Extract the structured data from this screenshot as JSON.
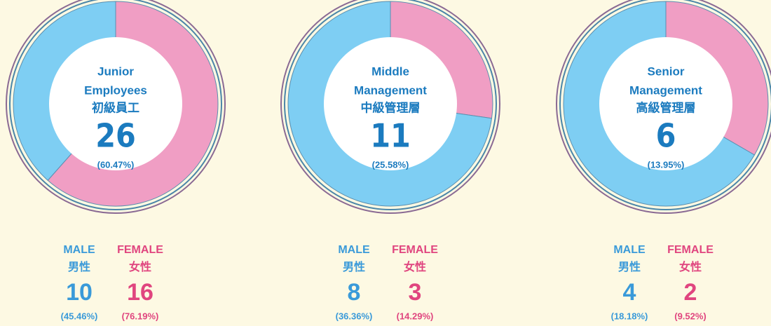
{
  "chart_data": [
    {
      "type": "donut",
      "title": "Junior Employees",
      "subtitle": "初級員工",
      "total": 26,
      "share": 60.47,
      "share_label": "(60.47%)",
      "categories": [
        "MALE",
        "FEMALE"
      ],
      "categories_zh": [
        "男性",
        "女性"
      ],
      "values": [
        10,
        16
      ],
      "percentages": [
        45.46,
        76.19
      ],
      "percentage_labels": [
        "(45.46%)",
        "(76.19%)"
      ],
      "colors": [
        "#7ecef3",
        "#f09ec4"
      ]
    },
    {
      "type": "donut",
      "title": "Middle Management",
      "subtitle": "中級管理層",
      "total": 11,
      "share": 25.58,
      "share_label": "(25.58%)",
      "categories": [
        "MALE",
        "FEMALE"
      ],
      "categories_zh": [
        "男性",
        "女性"
      ],
      "values": [
        8,
        3
      ],
      "percentages": [
        36.36,
        14.29
      ],
      "percentage_labels": [
        "(36.36%)",
        "(14.29%)"
      ],
      "colors": [
        "#7ecef3",
        "#f09ec4"
      ]
    },
    {
      "type": "donut",
      "title": "Senior Management",
      "subtitle": "高級管理層",
      "total": 6,
      "share": 13.95,
      "share_label": "(13.95%)",
      "categories": [
        "MALE",
        "FEMALE"
      ],
      "categories_zh": [
        "男性",
        "女性"
      ],
      "values": [
        4,
        2
      ],
      "percentages": [
        18.18,
        9.52
      ],
      "percentage_labels": [
        "(18.18%)",
        "(9.52%)"
      ],
      "colors": [
        "#7ecef3",
        "#f09ec4"
      ]
    }
  ]
}
